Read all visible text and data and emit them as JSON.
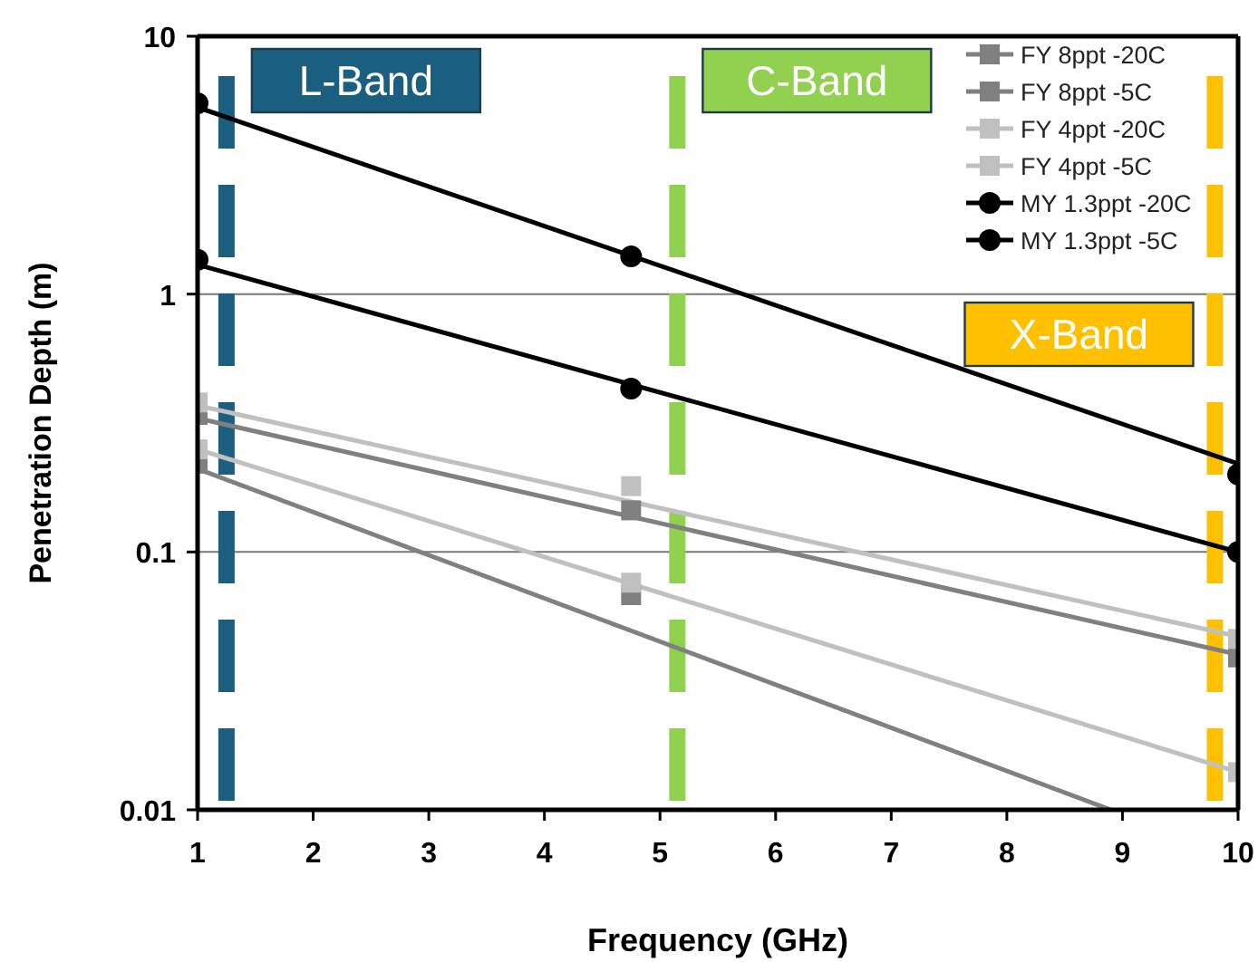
{
  "chart_data": {
    "type": "line",
    "xlabel": "Frequency (GHz)",
    "ylabel": "Penetration Depth (m)",
    "log": "y",
    "xlim": [
      1,
      10
    ],
    "xticks": [
      1,
      2,
      3,
      4,
      5,
      6,
      7,
      8,
      9,
      10
    ],
    "ylim": [
      0.01,
      10
    ],
    "yticks": [
      0.01,
      0.1,
      1,
      10
    ],
    "grid": "y",
    "legend": "top right",
    "series": [
      {
        "color": "#808080",
        "marker": "none",
        "x": [
          1,
          10
        ],
        "values": [
          0.33,
          0.04
        ]
      },
      {
        "color": "#808080",
        "marker": "none",
        "x": [
          1,
          8.9
        ],
        "values": [
          0.21,
          0.01
        ]
      },
      {
        "color": "#c0c0c0",
        "marker": "none",
        "x": [
          1,
          10
        ],
        "values": [
          0.37,
          0.047
        ]
      },
      {
        "color": "#c0c0c0",
        "marker": "none",
        "x": [
          1,
          10
        ],
        "values": [
          0.25,
          0.014
        ]
      },
      {
        "color": "#000000",
        "marker": "none",
        "x": [
          1,
          10
        ],
        "values": [
          5.3,
          0.22
        ]
      },
      {
        "color": "#000000",
        "marker": "none",
        "x": [
          1,
          10
        ],
        "values": [
          1.3,
          0.1
        ]
      },
      {
        "type": "scatter",
        "name": "FY 8ppt -20C",
        "color": "#808080",
        "marker": "square",
        "x": [
          1,
          4.75,
          10
        ],
        "values": [
          0.34,
          0.145,
          0.039
        ]
      },
      {
        "type": "scatter",
        "name": "FY 8ppt -5C",
        "color": "#808080",
        "marker": "square",
        "x": [
          1,
          4.75
        ],
        "values": [
          0.22,
          0.068
        ]
      },
      {
        "type": "scatter",
        "name": "FY 4ppt -20C",
        "color": "#c0c0c0",
        "marker": "square",
        "x": [
          1,
          4.75,
          10
        ],
        "values": [
          0.38,
          0.18,
          0.046
        ]
      },
      {
        "type": "scatter",
        "name": "FY 4ppt -5C",
        "color": "#c0c0c0",
        "marker": "square",
        "x": [
          1,
          4.75,
          10
        ],
        "values": [
          0.25,
          0.076,
          0.014
        ]
      },
      {
        "type": "scatter",
        "name": "MY 1.3ppt -20C",
        "color": "#000000",
        "marker": "circle",
        "x": [
          1,
          4.75,
          10
        ],
        "values": [
          5.5,
          1.4,
          0.2
        ]
      },
      {
        "type": "scatter",
        "name": "MY 1.3ppt -5C",
        "color": "#000000",
        "marker": "circle",
        "x": [
          1,
          4.75,
          10
        ],
        "values": [
          1.36,
          0.43,
          0.1
        ]
      }
    ],
    "ref_lines": [
      {
        "axis": "x",
        "value": 1.25,
        "label": "L-Band",
        "color": "#1a5e80",
        "line_style": "dashed"
      },
      {
        "axis": "x",
        "value": 5.15,
        "label": "C-Band",
        "color": "#92d050",
        "line_style": "dashed"
      },
      {
        "axis": "x",
        "value": 9.8,
        "label": "X-Band",
        "color": "#ffc000",
        "line_style": "dashed"
      }
    ]
  }
}
